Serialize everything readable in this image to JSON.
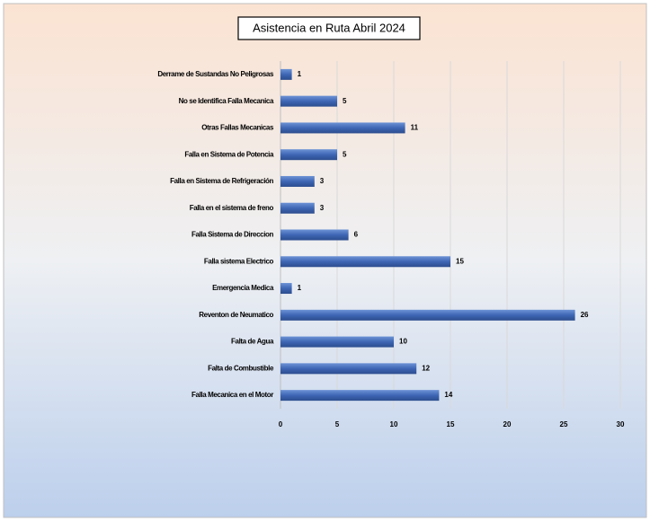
{
  "chart_data": {
    "type": "bar",
    "orientation": "horizontal",
    "title": "Asistencia en Ruta Abril 2024",
    "categories": [
      "Derrame de Sustandas No Peligrosas",
      "No se Identifica Falla Mecanica",
      "Otras Fallas Mecanicas",
      "Falla en Sistema de Potencia",
      "Falla en Sistema de Refrigeración",
      "Falla en el sistema de freno",
      "Falla Sistema de Direccion",
      "Falla sistema Electrico",
      "Emergencia Medica",
      "Reventon de Neumatico",
      "Falta de Agua",
      "Falta de Combustible",
      "Falla Mecanica en el Motor"
    ],
    "values": [
      1,
      5,
      11,
      5,
      3,
      3,
      6,
      15,
      1,
      26,
      10,
      12,
      14
    ],
    "color": "#4472c4",
    "xlim": [
      0,
      30
    ],
    "xticks": [
      0,
      5,
      10,
      15,
      20,
      25,
      30
    ],
    "grid": true
  }
}
